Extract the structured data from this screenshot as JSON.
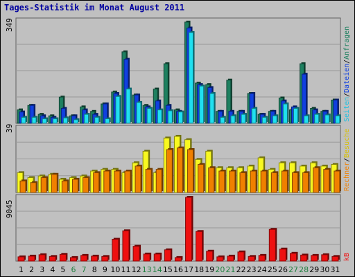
{
  "title": "Tages-Statistik im Monat August 2011",
  "colors": {
    "background": "#c0c0c0",
    "grid": "#999999",
    "anfragen": "#1e8060",
    "dateien": "#1040e0",
    "seiten": "#20e0f0",
    "besuche": "#f8f820",
    "rechner": "#f08000",
    "kb": "#ee1010",
    "title": "#0000a0",
    "weekend": "#208040"
  },
  "legend": {
    "top": [
      {
        "text": "Anfragen",
        "color": "#1e8060"
      },
      {
        "text": "Dateien",
        "color": "#1040e0"
      },
      {
        "text": "Seiten",
        "color": "#20c0e0"
      }
    ],
    "mid": [
      {
        "text": "Besuche",
        "color": "#d8c000"
      },
      {
        "text": "Rechner",
        "color": "#f08000"
      }
    ],
    "bot": [
      {
        "text": "kB",
        "color": "#ee1010"
      }
    ]
  },
  "chart_data": [
    {
      "type": "bar",
      "panel": "hits",
      "ymax_label": "349",
      "ylim": [
        0,
        349
      ],
      "categories": [
        "1",
        "2",
        "3",
        "4",
        "5",
        "6",
        "7",
        "8",
        "9",
        "10",
        "11",
        "12",
        "13",
        "14",
        "15",
        "16",
        "17",
        "18",
        "19",
        "20",
        "21",
        "22",
        "23",
        "24",
        "25",
        "26",
        "27",
        "28",
        "29",
        "30",
        "31"
      ],
      "weekend_days": [
        "6",
        "7",
        "13",
        "14",
        "20",
        "21",
        "27",
        "28"
      ],
      "series": [
        {
          "name": "Anfragen",
          "values": [
            45,
            60,
            30,
            25,
            88,
            25,
            55,
            40,
            65,
            105,
            240,
            95,
            60,
            115,
            200,
            45,
            340,
            135,
            130,
            40,
            145,
            40,
            100,
            30,
            40,
            85,
            45,
            200,
            50,
            40,
            78
          ]
        },
        {
          "name": "Dateien",
          "values": [
            38,
            60,
            25,
            20,
            50,
            25,
            45,
            30,
            65,
            100,
            215,
            95,
            55,
            75,
            60,
            40,
            320,
            130,
            120,
            40,
            40,
            40,
            100,
            30,
            40,
            75,
            55,
            165,
            45,
            40,
            78
          ]
        },
        {
          "name": "Seiten",
          "values": [
            20,
            20,
            15,
            15,
            18,
            12,
            30,
            20,
            15,
            90,
            115,
            70,
            50,
            45,
            42,
            38,
            305,
            125,
            100,
            20,
            25,
            30,
            50,
            20,
            25,
            65,
            50,
            25,
            30,
            28,
            25
          ]
        }
      ]
    },
    {
      "type": "bar",
      "panel": "visits",
      "ymax_label": "39",
      "ylim": [
        0,
        39
      ],
      "categories": [
        "1",
        "2",
        "3",
        "4",
        "5",
        "6",
        "7",
        "8",
        "9",
        "10",
        "11",
        "12",
        "13",
        "14",
        "15",
        "16",
        "17",
        "18",
        "19",
        "20",
        "21",
        "22",
        "23",
        "24",
        "25",
        "26",
        "27",
        "28",
        "29",
        "30",
        "31"
      ],
      "series": [
        {
          "name": "Besuche",
          "values": [
            12,
            9,
            10,
            11,
            8,
            9,
            10,
            13,
            14,
            14,
            12,
            18,
            25,
            12,
            33,
            34,
            32,
            20,
            25,
            15,
            15,
            15,
            16,
            21,
            14,
            18,
            18,
            16,
            18,
            16,
            17
          ]
        },
        {
          "name": "Rechner",
          "values": [
            7,
            6,
            9,
            11,
            7,
            8,
            9,
            12,
            13,
            13,
            13,
            16,
            14,
            14,
            26,
            27,
            26,
            17,
            15,
            13,
            13,
            12,
            13,
            13,
            12,
            13,
            12,
            12,
            15,
            14,
            13
          ]
        }
      ]
    },
    {
      "type": "bar",
      "panel": "kb",
      "ymax_label": "9045",
      "ylim": [
        0,
        9045
      ],
      "categories": [
        "1",
        "2",
        "3",
        "4",
        "5",
        "6",
        "7",
        "8",
        "9",
        "10",
        "11",
        "12",
        "13",
        "14",
        "15",
        "16",
        "17",
        "18",
        "19",
        "20",
        "21",
        "22",
        "23",
        "24",
        "25",
        "26",
        "27",
        "28",
        "29",
        "30",
        "31"
      ],
      "series": [
        {
          "name": "kB",
          "values": [
            600,
            700,
            900,
            650,
            950,
            500,
            800,
            700,
            650,
            3100,
            4300,
            2100,
            1000,
            1000,
            1600,
            500,
            9045,
            4200,
            1400,
            600,
            700,
            1300,
            650,
            800,
            4500,
            1700,
            1100,
            850,
            800,
            900,
            650
          ]
        }
      ]
    }
  ]
}
